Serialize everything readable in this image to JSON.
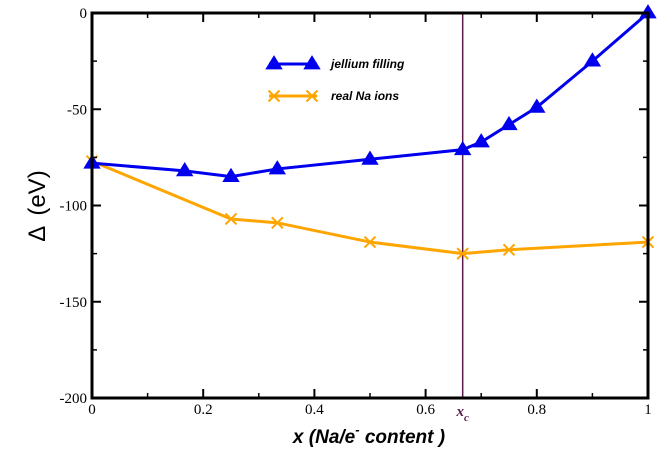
{
  "chart_data": {
    "type": "line",
    "xlabel": {
      "prefix": "x (Na/e",
      "sup": "-",
      "suffix": " content )"
    },
    "ylabel": {
      "symbol": "Δ",
      "unit": "(eV)"
    },
    "xlim": [
      0,
      1
    ],
    "ylim": [
      -200,
      0
    ],
    "x_ticks": [
      0,
      0.2,
      0.4,
      0.6,
      0.8,
      1
    ],
    "x_tick_labels": [
      "0",
      "0.2",
      "0.4",
      "0.6",
      "0.8",
      "1"
    ],
    "y_ticks": [
      0,
      -50,
      -100,
      -150,
      -200
    ],
    "y_tick_labels": [
      "0",
      "-50",
      "-100",
      "-150",
      "-200"
    ],
    "grid": false,
    "legend_position": "upper-center",
    "vline": {
      "x": 0.6667,
      "label_main": "x",
      "label_sub": "c",
      "color": "#5c1a4a"
    },
    "series": [
      {
        "name": "jellium filling",
        "marker": "triangle",
        "color": "#0000ee",
        "x": [
          0,
          0.1667,
          0.25,
          0.3333,
          0.5,
          0.6667,
          0.7,
          0.75,
          0.8,
          0.9,
          1.0
        ],
        "y": [
          -78,
          -82,
          -85,
          -81,
          -76,
          -71,
          -67,
          -58,
          -49,
          -25,
          0
        ]
      },
      {
        "name": "real Na ions",
        "marker": "x",
        "color": "#ffa500",
        "x": [
          0,
          0.25,
          0.3333,
          0.5,
          0.6667,
          0.75,
          1.0
        ],
        "y": [
          -77,
          -107,
          -109,
          -119,
          -125,
          -123,
          -119
        ]
      }
    ]
  }
}
